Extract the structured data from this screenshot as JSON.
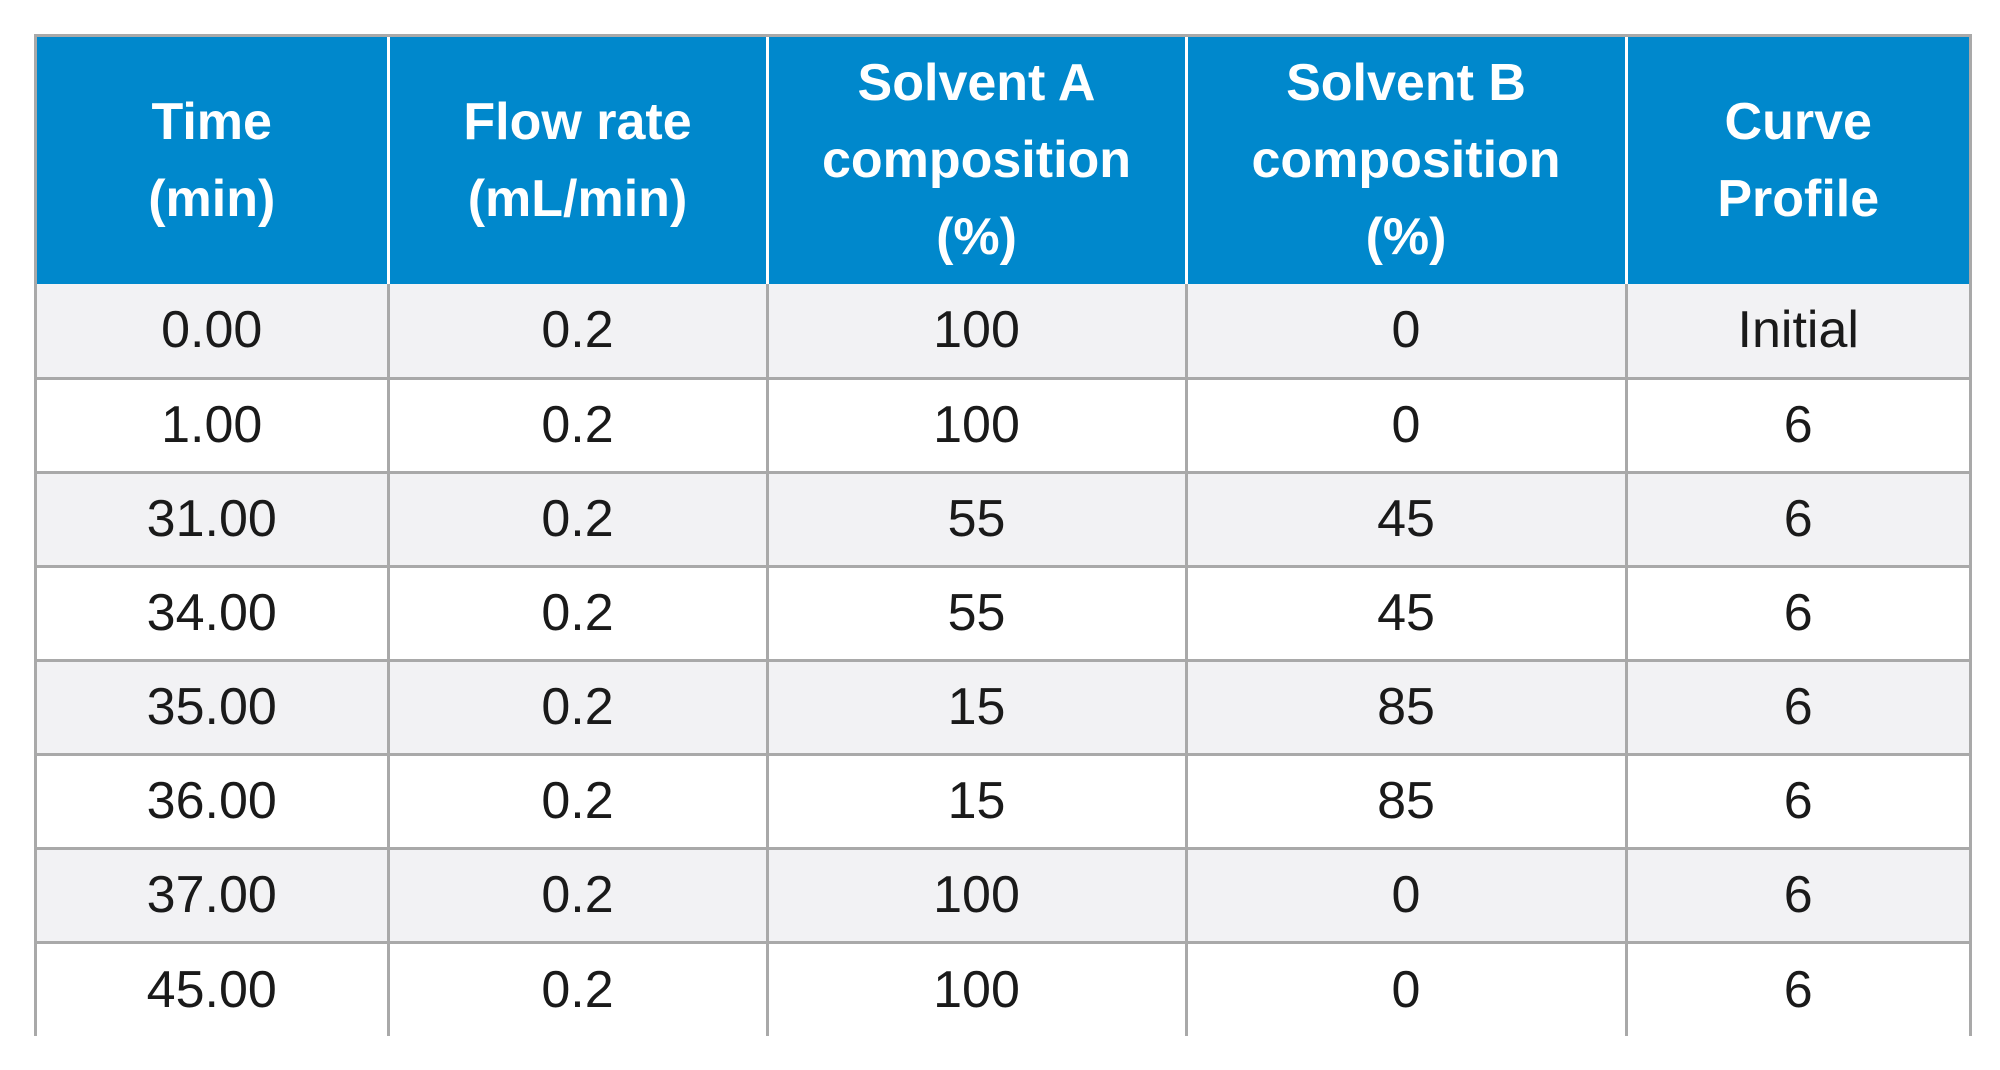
{
  "table": {
    "headers": [
      [
        "Time",
        "(min)"
      ],
      [
        "Flow rate",
        "(mL/min)"
      ],
      [
        "Solvent A",
        "composition",
        "(%)"
      ],
      [
        "Solvent B",
        "composition",
        "(%)"
      ],
      [
        "Curve",
        "Profile"
      ]
    ],
    "rows": [
      [
        "0.00",
        "0.2",
        "100",
        "0",
        "Initial"
      ],
      [
        "1.00",
        "0.2",
        "100",
        "0",
        "6"
      ],
      [
        "31.00",
        "0.2",
        "55",
        "45",
        "6"
      ],
      [
        "34.00",
        "0.2",
        "55",
        "45",
        "6"
      ],
      [
        "35.00",
        "0.2",
        "15",
        "85",
        "6"
      ],
      [
        "36.00",
        "0.2",
        "15",
        "85",
        "6"
      ],
      [
        "37.00",
        "0.2",
        "100",
        "0",
        "6"
      ],
      [
        "45.00",
        "0.2",
        "100",
        "0",
        "6"
      ]
    ]
  },
  "colors": {
    "header_bg": "#0088cc",
    "header_text": "#ffffff",
    "row_alt_bg": "#f2f2f4",
    "border": "#a9a9a9"
  }
}
